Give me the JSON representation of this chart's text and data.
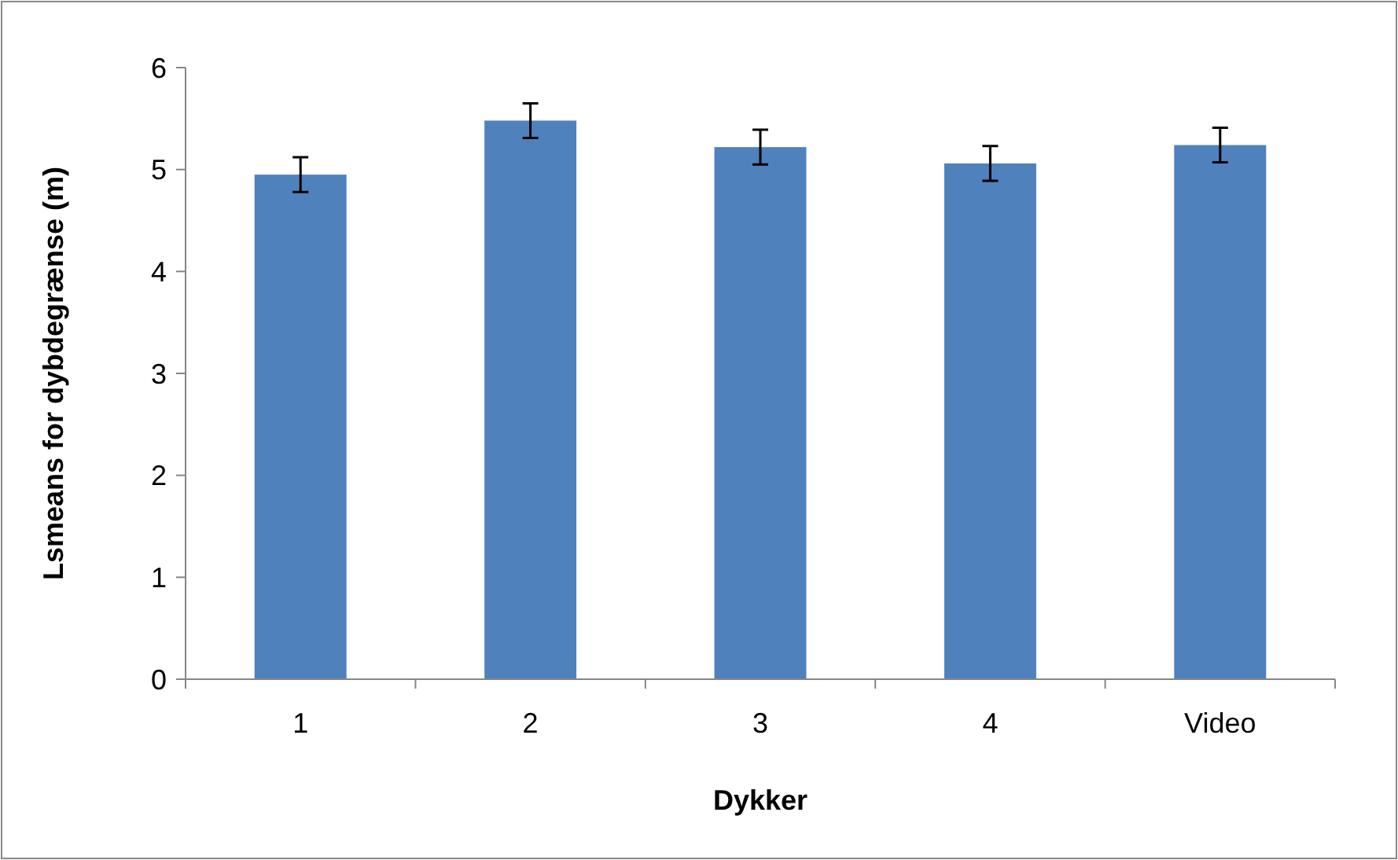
{
  "chart_data": {
    "type": "bar",
    "xlabel": "Dykker",
    "ylabel": "Lsmeans for dybdegrænse (m)",
    "categories": [
      "1",
      "2",
      "3",
      "4",
      "Video"
    ],
    "series": [
      {
        "color": "#4f81bd",
        "values": [
          4.95,
          5.48,
          5.22,
          5.06,
          5.24
        ],
        "errors": [
          0.17,
          0.17,
          0.17,
          0.17,
          0.17
        ]
      }
    ],
    "ylim": [
      0,
      6
    ],
    "yticks": [
      0,
      1,
      2,
      3,
      4,
      5,
      6
    ],
    "grid": false
  }
}
